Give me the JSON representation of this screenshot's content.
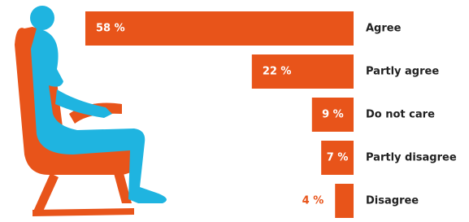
{
  "chart_data": {
    "type": "bar",
    "orientation": "horizontal",
    "color": "#e8541a",
    "categories": [
      "Agree",
      "Partly agree",
      "Do not care",
      "Partly disagree",
      "Disagree"
    ],
    "values": [
      58,
      22,
      9,
      7,
      4
    ],
    "value_labels": [
      "58 %",
      "22 %",
      "9 %",
      "7 %",
      "4 %"
    ]
  }
}
